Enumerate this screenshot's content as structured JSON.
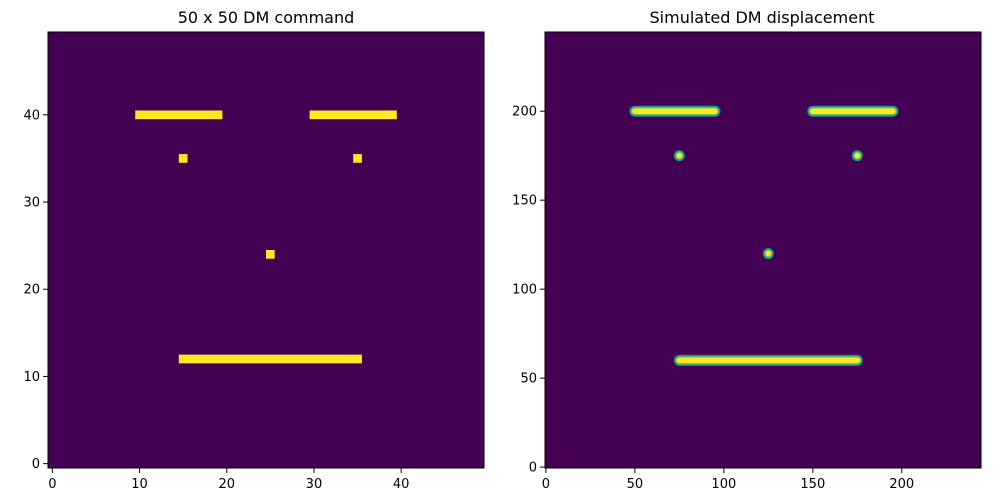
{
  "chart_data": [
    {
      "type": "heatmap",
      "title": "50 x 50 DM command",
      "xlim": [
        -0.5,
        49.5
      ],
      "ylim": [
        -0.5,
        49.5
      ],
      "xticks": [
        0,
        10,
        20,
        30,
        40
      ],
      "yticks": [
        0,
        10,
        20,
        30,
        40
      ],
      "origin": "lower",
      "colormap": "viridis",
      "background_color": "#440154",
      "feature_color": "#fde725",
      "grid": false,
      "features": [
        {
          "name": "left-brow",
          "x": [
            10,
            19
          ],
          "y": [
            40,
            40
          ]
        },
        {
          "name": "right-brow",
          "x": [
            30,
            39
          ],
          "y": [
            40,
            40
          ]
        },
        {
          "name": "left-eye",
          "x": [
            15,
            15
          ],
          "y": [
            35,
            35
          ]
        },
        {
          "name": "right-eye",
          "x": [
            35,
            35
          ],
          "y": [
            35,
            35
          ]
        },
        {
          "name": "nose",
          "x": [
            25,
            25
          ],
          "y": [
            24,
            24
          ]
        },
        {
          "name": "mouth",
          "x": [
            15,
            35
          ],
          "y": [
            12,
            12
          ]
        }
      ]
    },
    {
      "type": "heatmap",
      "title": "Simulated DM displacement",
      "xlim": [
        -0.5,
        244.5
      ],
      "ylim": [
        -0.5,
        244.5
      ],
      "xticks": [
        0,
        50,
        100,
        150,
        200
      ],
      "yticks": [
        0,
        50,
        100,
        150,
        200
      ],
      "origin": "lower",
      "colormap": "viridis",
      "background_color": "#440154",
      "feature_color": "#fde725",
      "grid": false,
      "features": [
        {
          "name": "left-brow",
          "x": [
            50,
            95
          ],
          "y": [
            200,
            200
          ]
        },
        {
          "name": "right-brow",
          "x": [
            150,
            195
          ],
          "y": [
            200,
            200
          ]
        },
        {
          "name": "left-eye",
          "x": [
            75,
            75
          ],
          "y": [
            175,
            175
          ]
        },
        {
          "name": "right-eye",
          "x": [
            175,
            175
          ],
          "y": [
            175,
            175
          ]
        },
        {
          "name": "nose",
          "x": [
            125,
            125
          ],
          "y": [
            120,
            120
          ]
        },
        {
          "name": "mouth",
          "x": [
            75,
            175
          ],
          "y": [
            60,
            60
          ]
        }
      ]
    }
  ]
}
